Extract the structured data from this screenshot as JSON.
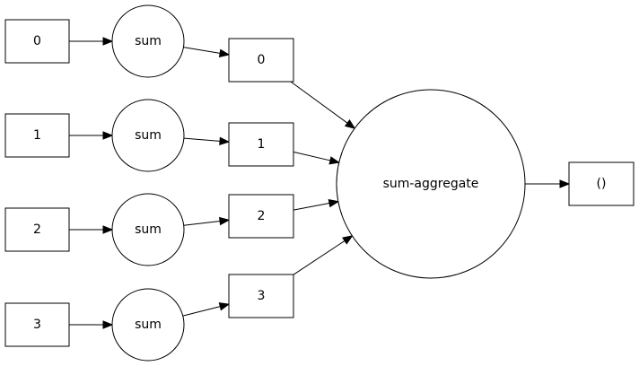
{
  "graph": {
    "inputs": [
      {
        "id": "in0",
        "label": "0"
      },
      {
        "id": "in1",
        "label": "1"
      },
      {
        "id": "in2",
        "label": "2"
      },
      {
        "id": "in3",
        "label": "3"
      }
    ],
    "sums": [
      {
        "id": "sum0",
        "label": "sum"
      },
      {
        "id": "sum1",
        "label": "sum"
      },
      {
        "id": "sum2",
        "label": "sum"
      },
      {
        "id": "sum3",
        "label": "sum"
      }
    ],
    "outputs": [
      {
        "id": "out0",
        "label": "0"
      },
      {
        "id": "out1",
        "label": "1"
      },
      {
        "id": "out2",
        "label": "2"
      },
      {
        "id": "out3",
        "label": "3"
      }
    ],
    "aggregate": {
      "id": "agg",
      "label": "sum-aggregate"
    },
    "result": {
      "id": "result",
      "label": "()"
    },
    "edges": [
      {
        "from": "in0",
        "to": "sum0"
      },
      {
        "from": "in1",
        "to": "sum1"
      },
      {
        "from": "in2",
        "to": "sum2"
      },
      {
        "from": "in3",
        "to": "sum3"
      },
      {
        "from": "sum0",
        "to": "out0"
      },
      {
        "from": "sum1",
        "to": "out1"
      },
      {
        "from": "sum2",
        "to": "out2"
      },
      {
        "from": "sum3",
        "to": "out3"
      },
      {
        "from": "out0",
        "to": "agg"
      },
      {
        "from": "out1",
        "to": "agg"
      },
      {
        "from": "out2",
        "to": "agg"
      },
      {
        "from": "out3",
        "to": "agg"
      },
      {
        "from": "agg",
        "to": "result"
      }
    ],
    "colors": {
      "stroke": "#000000",
      "fill": "#ffffff"
    }
  }
}
